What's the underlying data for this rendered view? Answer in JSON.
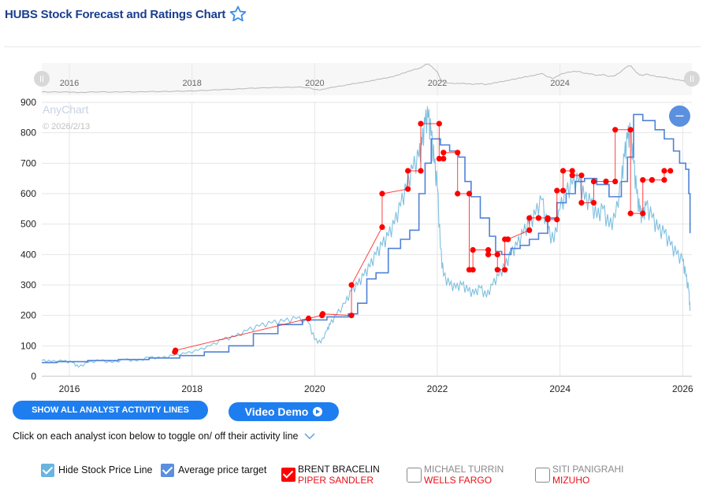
{
  "header": {
    "title": "HUBS Stock Forecast and Ratings Chart",
    "favorite_icon": "star-outline-icon"
  },
  "colors": {
    "title": "#1a3e8c",
    "stock_price": "#7ec0e0",
    "average_target": "#4f82d8",
    "analyst": "#ff0000",
    "button": "#1e7ef0",
    "zoom_button": "#5b8fdf",
    "navigator_line": "#b8b8b8"
  },
  "chart": {
    "watermark": "AnyChart",
    "date_stamp": "© 2026/2/13",
    "zoom_out_icon": "minus-icon",
    "navigator": {
      "tick_labels": [
        "2016",
        "2018",
        "2020",
        "2022",
        "2024"
      ],
      "left_handle_icon": "drag-handle-icon",
      "right_handle_icon": "drag-handle-icon"
    }
  },
  "buttons": {
    "show_all": "SHOW ALL ANALYST ACTIVITY LINES",
    "video_demo": "Video Demo",
    "video_icon": "play-circle-icon"
  },
  "hint": {
    "text": "Click on each analyst icon below to toggle on/ off their activity line",
    "icon": "chevron-down-icon"
  },
  "legend": {
    "hide_stock": {
      "label": "Hide Stock Price Line",
      "checked": true,
      "color": "#6ab4e0"
    },
    "avg_target": {
      "label": "Average price target",
      "checked": true,
      "color": "#5b8fdf"
    },
    "analysts": [
      {
        "name": "BRENT BRACELIN",
        "firm": "PIPER SANDLER",
        "checked": true,
        "color": "#ff0000",
        "name_color": "#111111"
      },
      {
        "name": "MICHAEL TURRIN",
        "firm": "WELLS FARGO",
        "checked": false,
        "color": "#ffffff",
        "name_color": "#8a8a8a"
      },
      {
        "name": "SITI PANIGRAHI",
        "firm": "MIZUHO",
        "checked": false,
        "color": "#ffffff",
        "name_color": "#8a8a8a"
      }
    ]
  },
  "chart_data": {
    "type": "line",
    "title": "HUBS Stock Forecast and Ratings Chart",
    "xlabel": "",
    "ylabel": "",
    "xlim": [
      2015.55,
      2026.15
    ],
    "ylim": [
      0,
      900
    ],
    "x_ticks": [
      "2016",
      "2018",
      "2020",
      "2022",
      "2024",
      "2026"
    ],
    "y_ticks": [
      "0",
      "100",
      "200",
      "300",
      "400",
      "500",
      "600",
      "700",
      "800",
      "900"
    ],
    "grid": true,
    "legend": "bottom",
    "series": [
      {
        "name": "Stock Price",
        "style": "thin-line",
        "x": [
          2015.55,
          2015.7,
          2015.9,
          2016.05,
          2016.15,
          2016.3,
          2016.5,
          2016.7,
          2016.9,
          2017.1,
          2017.3,
          2017.5,
          2017.7,
          2017.9,
          2018.1,
          2018.3,
          2018.5,
          2018.7,
          2018.9,
          2019.1,
          2019.3,
          2019.5,
          2019.7,
          2019.9,
          2020.0,
          2020.1,
          2020.2,
          2020.25,
          2020.35,
          2020.5,
          2020.6,
          2020.7,
          2020.8,
          2020.9,
          2021.0,
          2021.1,
          2021.2,
          2021.3,
          2021.4,
          2021.5,
          2021.6,
          2021.7,
          2021.75,
          2021.8,
          2021.85,
          2021.9,
          2021.95,
          2022.0,
          2022.05,
          2022.1,
          2022.2,
          2022.3,
          2022.4,
          2022.5,
          2022.6,
          2022.7,
          2022.8,
          2022.9,
          2023.0,
          2023.1,
          2023.2,
          2023.3,
          2023.4,
          2023.5,
          2023.6,
          2023.7,
          2023.8,
          2023.9,
          2024.0,
          2024.1,
          2024.2,
          2024.3,
          2024.4,
          2024.5,
          2024.6,
          2024.7,
          2024.8,
          2024.9,
          2025.0,
          2025.05,
          2025.1,
          2025.15,
          2025.2,
          2025.25,
          2025.3,
          2025.35,
          2025.4,
          2025.5,
          2025.6,
          2025.7,
          2025.8,
          2025.9,
          2026.0,
          2026.05,
          2026.1,
          2026.12
        ],
        "y": [
          52,
          48,
          50,
          45,
          30,
          45,
          52,
          45,
          55,
          50,
          62,
          60,
          68,
          75,
          85,
          100,
          120,
          130,
          150,
          165,
          175,
          180,
          190,
          175,
          120,
          110,
          150,
          170,
          200,
          240,
          280,
          300,
          330,
          360,
          400,
          430,
          460,
          500,
          560,
          620,
          680,
          720,
          760,
          830,
          850,
          790,
          700,
          620,
          420,
          330,
          300,
          290,
          300,
          280,
          270,
          290,
          260,
          300,
          330,
          360,
          400,
          430,
          470,
          500,
          530,
          580,
          480,
          440,
          550,
          600,
          630,
          640,
          580,
          570,
          520,
          550,
          490,
          520,
          640,
          720,
          780,
          800,
          700,
          600,
          540,
          520,
          560,
          520,
          480,
          470,
          430,
          400,
          380,
          330,
          280,
          215
        ]
      },
      {
        "name": "Average price target",
        "style": "step-line",
        "x": [
          2015.55,
          2015.8,
          2016.3,
          2016.8,
          2017.3,
          2017.8,
          2018.2,
          2018.6,
          2019.0,
          2019.4,
          2019.8,
          2020.2,
          2020.55,
          2020.7,
          2020.85,
          2021.0,
          2021.2,
          2021.4,
          2021.55,
          2021.7,
          2021.8,
          2021.9,
          2022.05,
          2022.2,
          2022.35,
          2022.45,
          2022.55,
          2022.7,
          2022.85,
          2022.95,
          2023.05,
          2023.2,
          2023.35,
          2023.5,
          2023.65,
          2023.8,
          2023.95,
          2024.1,
          2024.25,
          2024.4,
          2024.6,
          2024.8,
          2025.0,
          2025.1,
          2025.2,
          2025.35,
          2025.55,
          2025.7,
          2025.85,
          2025.95,
          2026.05,
          2026.1,
          2026.12
        ],
        "y": [
          45,
          48,
          52,
          55,
          60,
          68,
          80,
          100,
          140,
          170,
          185,
          195,
          205,
          240,
          320,
          340,
          420,
          450,
          480,
          600,
          700,
          780,
          760,
          740,
          720,
          640,
          590,
          520,
          460,
          410,
          400,
          420,
          430,
          450,
          470,
          520,
          570,
          600,
          640,
          650,
          630,
          590,
          640,
          720,
          860,
          840,
          810,
          780,
          740,
          700,
          680,
          600,
          470
        ]
      },
      {
        "name": "BRENT BRACELIN (PIPER SANDLER)",
        "style": "markers-line",
        "x": [
          2017.72,
          2017.73,
          2019.9,
          2020.12,
          2020.13,
          2020.6,
          2020.6,
          2021.1,
          2021.1,
          2021.52,
          2021.52,
          2021.73,
          2021.73,
          2022.03,
          2022.03,
          2022.1,
          2022.1,
          2022.33,
          2022.33,
          2022.52,
          2022.52,
          2022.58,
          2022.58,
          2022.83,
          2022.83,
          2022.98,
          2022.98,
          2023.1,
          2023.1,
          2023.15,
          2023.15,
          2023.5,
          2023.5,
          2023.65,
          2023.65,
          2023.8,
          2023.8,
          2023.95,
          2023.95,
          2024.05,
          2024.05,
          2024.2,
          2024.2,
          2024.35,
          2024.35,
          2024.55,
          2024.55,
          2024.75,
          2024.75,
          2024.9,
          2024.9,
          2025.15,
          2025.15,
          2025.35,
          2025.35,
          2025.5,
          2025.5,
          2025.7,
          2025.7,
          2025.8
        ],
        "y": [
          80,
          85,
          190,
          200,
          205,
          200,
          300,
          490,
          600,
          615,
          675,
          675,
          830,
          830,
          715,
          715,
          735,
          735,
          600,
          600,
          350,
          350,
          415,
          415,
          400,
          400,
          350,
          350,
          450,
          450,
          450,
          480,
          520,
          520,
          520,
          520,
          515,
          515,
          610,
          610,
          675,
          675,
          660,
          660,
          570,
          570,
          640,
          640,
          640,
          640,
          810,
          810,
          535,
          535,
          645,
          645,
          645,
          645,
          675,
          675
        ]
      }
    ],
    "navigator": {
      "x_ticks": [
        "2016",
        "2018",
        "2020",
        "2022",
        "2024"
      ],
      "series": "Stock Price"
    }
  }
}
